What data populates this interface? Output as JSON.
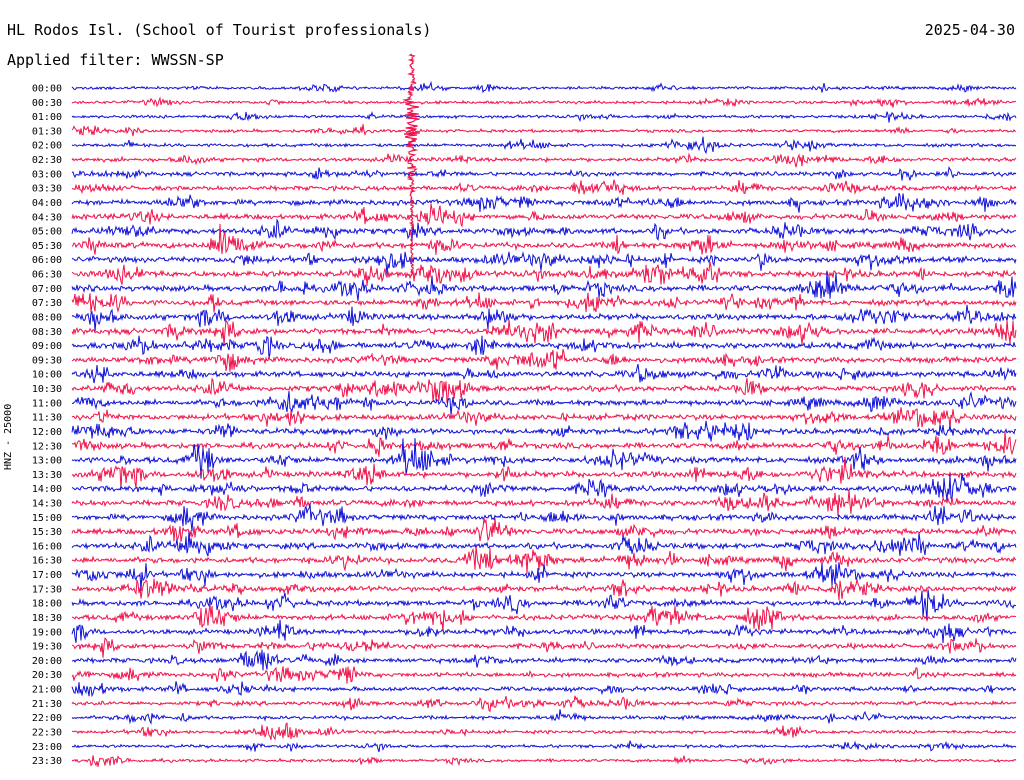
{
  "header": {
    "station": "HL Rodos Isl. (School of Tourist professionals)",
    "date": "2025-04-30",
    "filter_label": "Applied filter: WWSSN-SP"
  },
  "axis": {
    "ylabel": "HNZ - 25000"
  },
  "colors": {
    "blue": "#1010d8",
    "red": "#f0124a",
    "background": "#ffffff",
    "text": "#000000"
  },
  "chart_data": {
    "type": "line",
    "description_hint": "helicorder",
    "traces": [
      "00:00",
      "00:30",
      "01:00",
      "01:30",
      "02:00",
      "02:30",
      "03:00",
      "03:30",
      "04:00",
      "04:30",
      "05:00",
      "05:30",
      "06:00",
      "06:30",
      "07:00",
      "07:30",
      "08:00",
      "08:30",
      "09:00",
      "09:30",
      "10:00",
      "10:30",
      "11:00",
      "11:30",
      "12:00",
      "12:30",
      "13:00",
      "13:30",
      "14:00",
      "14:30",
      "15:00",
      "15:30",
      "16:00",
      "16:30",
      "17:00",
      "17:30",
      "18:00",
      "18:30",
      "19:00",
      "19:30",
      "20:00",
      "20:30",
      "21:00",
      "21:30",
      "22:00",
      "22:30",
      "23:00",
      "23:30"
    ],
    "trace_colors": [
      "blue",
      "red"
    ],
    "noise_level": [
      0.15,
      0.15,
      0.15,
      0.15,
      0.2,
      0.3,
      0.35,
      0.4,
      0.55,
      0.55,
      0.6,
      0.6,
      0.6,
      0.65,
      0.65,
      0.6,
      0.6,
      0.65,
      0.65,
      0.6,
      0.6,
      0.6,
      0.6,
      0.6,
      0.6,
      0.6,
      0.65,
      0.6,
      0.6,
      0.6,
      0.6,
      0.6,
      0.6,
      0.6,
      0.55,
      0.55,
      0.55,
      0.55,
      0.5,
      0.45,
      0.45,
      0.4,
      0.4,
      0.3,
      0.25,
      0.2,
      0.15,
      0.15
    ],
    "large_event": {
      "start_trace": "00:00",
      "end_trace": "06:30",
      "time_fraction": 0.36
    }
  }
}
